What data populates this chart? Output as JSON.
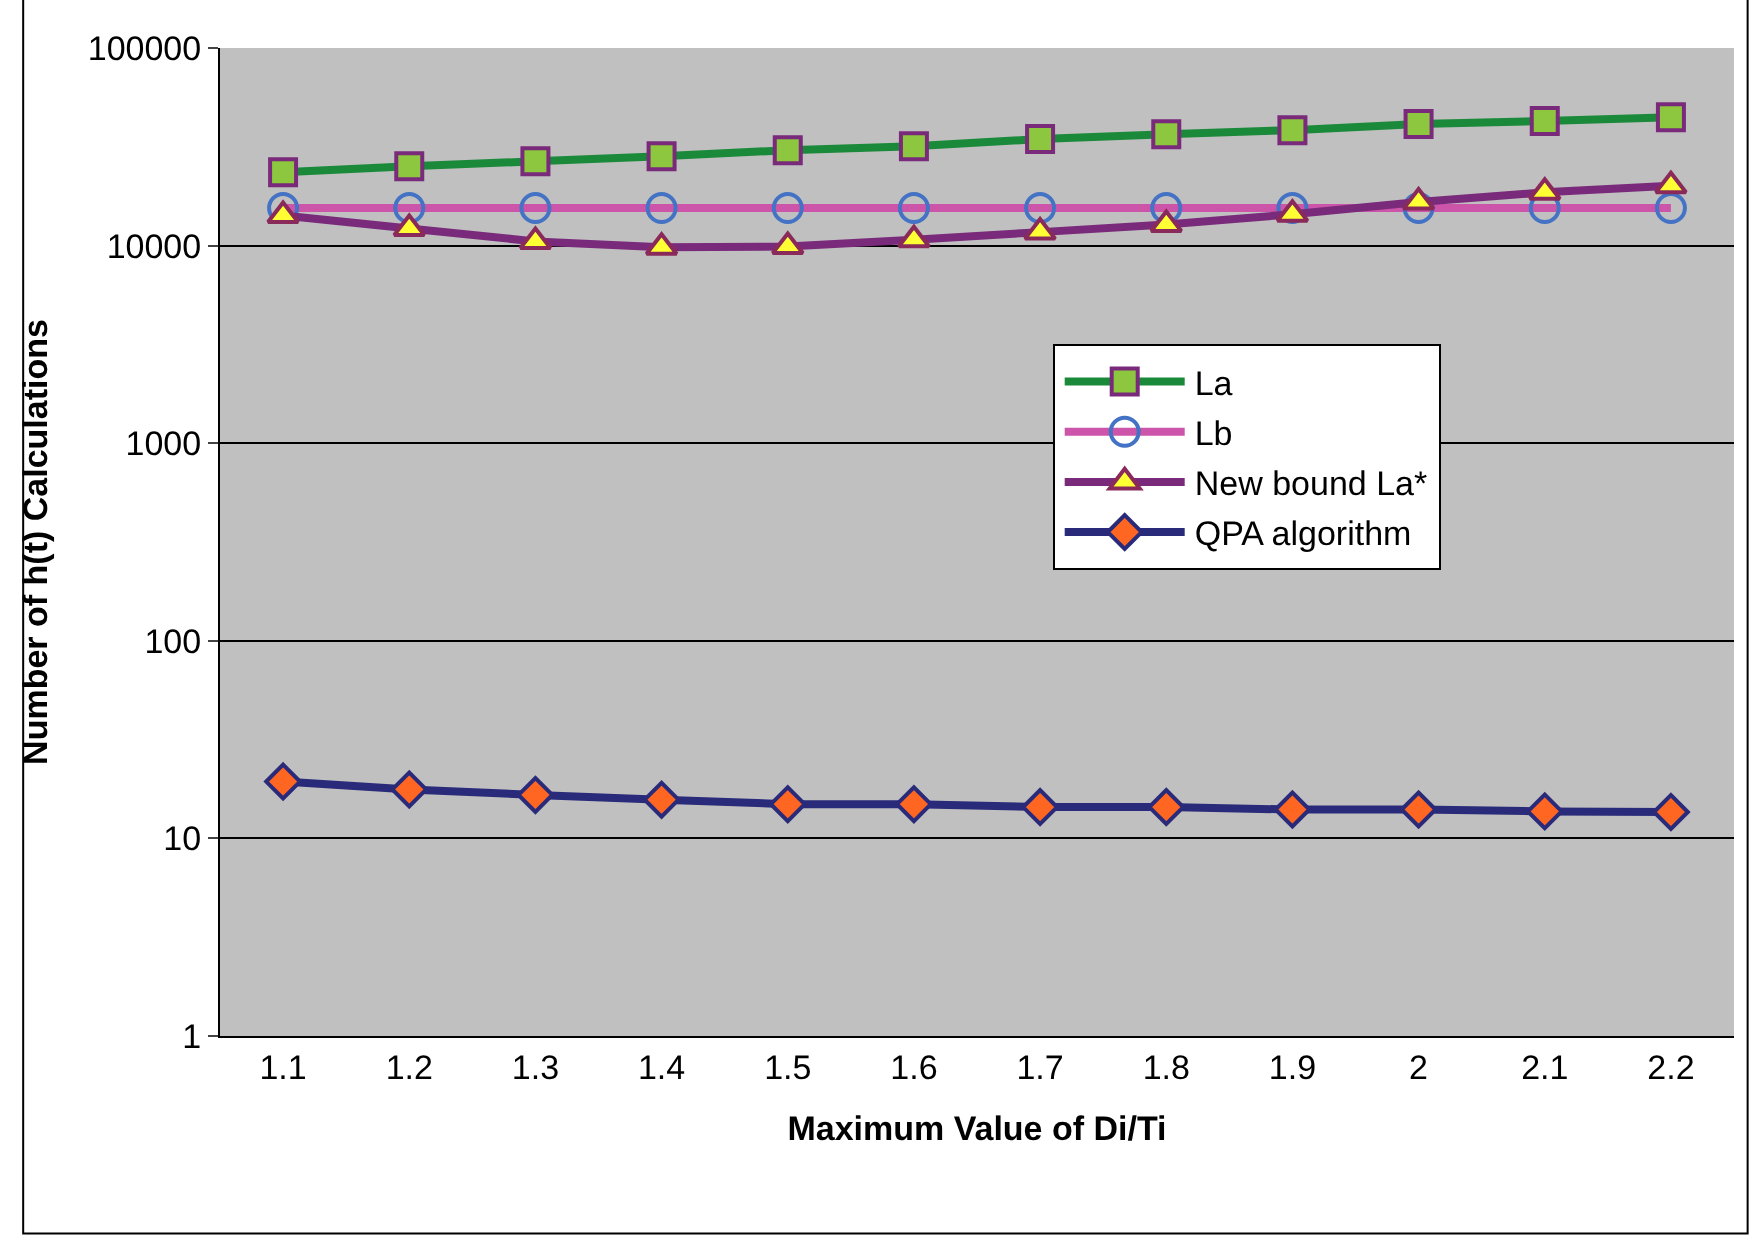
{
  "chart_data": {
    "type": "line",
    "xlabel": "Maximum Value of Di/Ti",
    "ylabel": "Number of h(t) Calculations",
    "categories": [
      "1.1",
      "1.2",
      "1.3",
      "1.4",
      "1.5",
      "1.6",
      "1.7",
      "1.8",
      "1.9",
      "2",
      "2.1",
      "2.2"
    ],
    "series": [
      {
        "name": "La",
        "color": "#1a8a3a",
        "marker": "square",
        "values": [
          23500,
          25200,
          26700,
          28300,
          30400,
          31800,
          34600,
          36600,
          38400,
          41200,
          42700,
          44600
        ]
      },
      {
        "name": "Lb",
        "color": "#cc55aa",
        "marker": "circle",
        "values": [
          15500,
          15500,
          15500,
          15500,
          15500,
          15500,
          15500,
          15500,
          15500,
          15500,
          15500,
          15500
        ]
      },
      {
        "name": "New bound La*",
        "color": "#7a2a7a",
        "marker": "triangle",
        "values": [
          14200,
          12200,
          10500,
          9800,
          9900,
          10700,
          11700,
          12800,
          14400,
          16600,
          18600,
          20100
        ]
      },
      {
        "name": "QPA algorithm",
        "color": "#2a2a7a",
        "marker": "diamond",
        "values": [
          19.4,
          17.7,
          16.6,
          15.7,
          14.9,
          14.9,
          14.4,
          14.4,
          14.0,
          14.0,
          13.7,
          13.6
        ]
      }
    ],
    "log": true,
    "ylim": [
      1,
      100000
    ],
    "yticks": [
      1,
      10,
      100,
      1000,
      10000,
      100000
    ],
    "grid": "y",
    "legend": "right"
  }
}
